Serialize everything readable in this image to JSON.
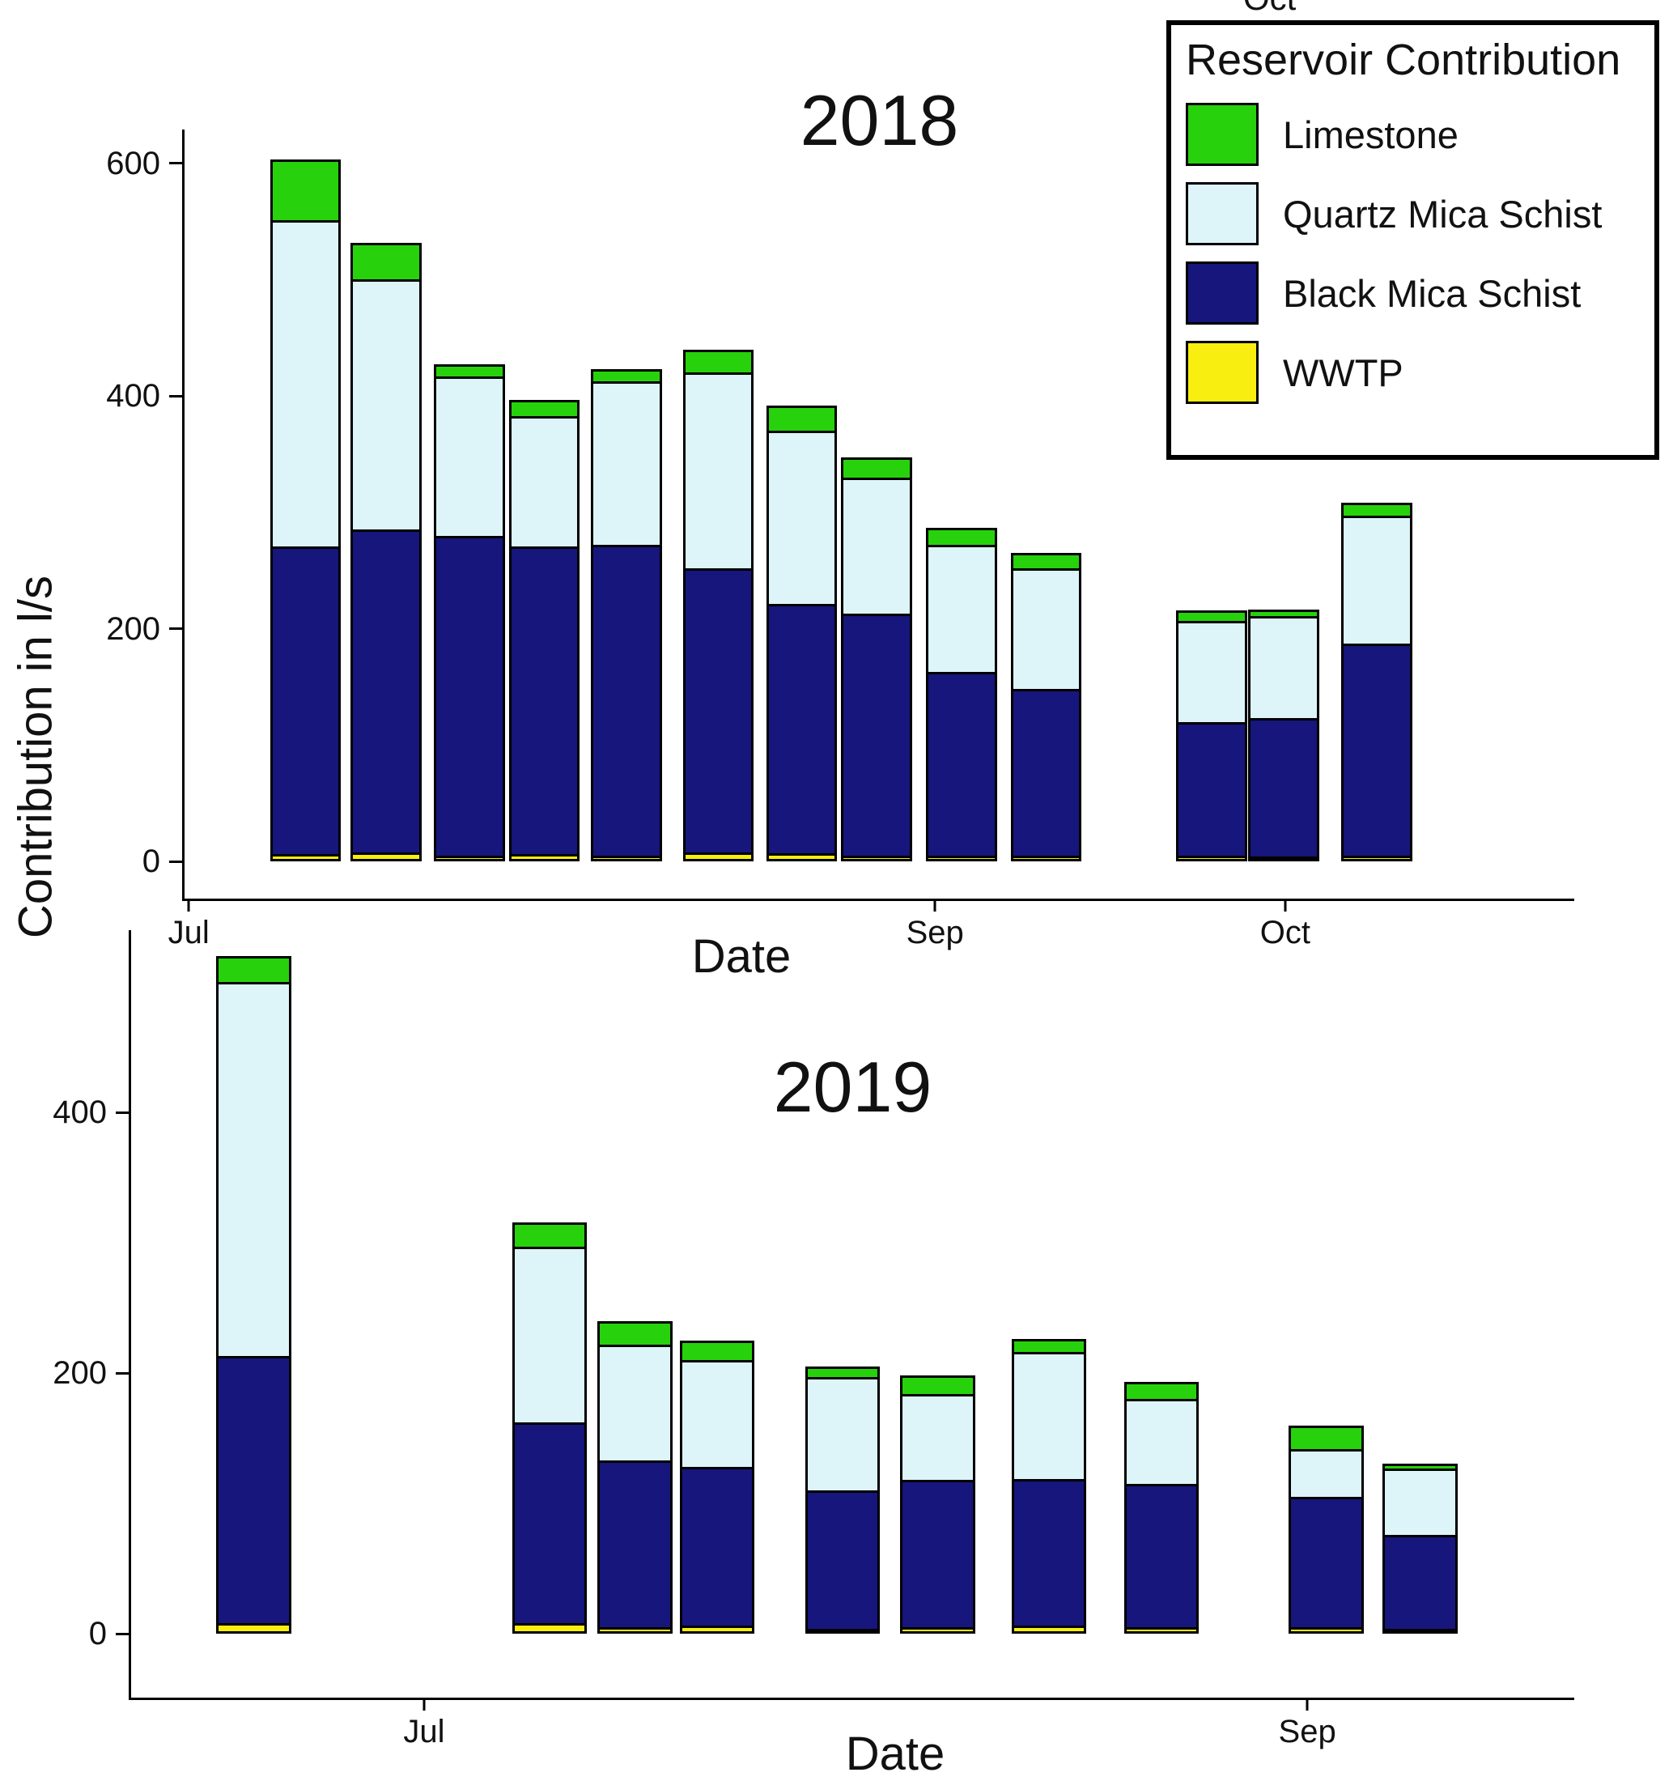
{
  "figure": {
    "ylabel": "Contribution in l/s",
    "cropped_top_label": "Oct"
  },
  "legend": {
    "title": "Reservoir Contribution",
    "items": [
      {
        "label": "Limestone",
        "color": "#27d20c"
      },
      {
        "label": "Quartz Mica Schist",
        "color": "#ddf4f9"
      },
      {
        "label": "Black Mica Schist",
        "color": "#16167c"
      },
      {
        "label": "WWTP",
        "color": "#f8ee0f"
      }
    ]
  },
  "chart_data": [
    {
      "type": "bar",
      "stacked": true,
      "title": "2018",
      "xlabel": "Date",
      "ylabel": "Contribution in l/s",
      "ylim": [
        0,
        620
      ],
      "yticks": [
        0,
        200,
        400,
        600
      ],
      "grid": false,
      "legend_position": "upper right (outside plot)",
      "xticks": [
        {
          "label": "Jul",
          "x": 0.003
        },
        {
          "label": "Sep",
          "x": 0.54
        },
        {
          "label": "Oct",
          "x": 0.792
        }
      ],
      "series": [
        {
          "name": "WWTP",
          "color": "#f8ee0f"
        },
        {
          "name": "Black Mica Schist",
          "color": "#16167c"
        },
        {
          "name": "Quartz Mica Schist",
          "color": "#ddf4f9"
        },
        {
          "name": "Limestone",
          "color": "#27d20c"
        }
      ],
      "bar_width": 0.051,
      "bars": [
        {
          "x": 0.087,
          "stack": [
            6,
            265,
            280,
            52
          ]
        },
        {
          "x": 0.145,
          "stack": [
            8,
            277,
            215,
            32
          ]
        },
        {
          "x": 0.205,
          "stack": [
            5,
            275,
            137,
            10
          ]
        },
        {
          "x": 0.259,
          "stack": [
            6,
            265,
            112,
            14
          ]
        },
        {
          "x": 0.318,
          "stack": [
            5,
            267,
            141,
            10
          ]
        },
        {
          "x": 0.384,
          "stack": [
            8,
            244,
            168,
            20
          ]
        },
        {
          "x": 0.444,
          "stack": [
            7,
            214,
            149,
            22
          ]
        },
        {
          "x": 0.498,
          "stack": [
            5,
            208,
            117,
            17
          ]
        },
        {
          "x": 0.559,
          "stack": [
            5,
            158,
            109,
            15
          ]
        },
        {
          "x": 0.62,
          "stack": [
            5,
            143,
            104,
            13
          ]
        },
        {
          "x": 0.739,
          "stack": [
            5,
            115,
            87,
            9
          ]
        },
        {
          "x": 0.791,
          "stack": [
            3,
            119,
            88,
            5
          ]
        },
        {
          "x": 0.858,
          "stack": [
            5,
            182,
            110,
            11
          ]
        }
      ]
    },
    {
      "type": "bar",
      "stacked": true,
      "title": "2019",
      "xlabel": "Date",
      "ylabel": "Contribution in l/s",
      "ylim": [
        0,
        540
      ],
      "yticks": [
        0,
        200,
        400
      ],
      "grid": false,
      "xticks": [
        {
          "label": "Jul",
          "x": 0.203
        },
        {
          "label": "Sep",
          "x": 0.815
        }
      ],
      "series": [
        {
          "name": "WWTP",
          "color": "#f8ee0f"
        },
        {
          "name": "Black Mica Schist",
          "color": "#16167c"
        },
        {
          "name": "Quartz Mica Schist",
          "color": "#ddf4f9"
        },
        {
          "name": "Limestone",
          "color": "#27d20c"
        }
      ],
      "bar_width": 0.052,
      "bars": [
        {
          "x": 0.085,
          "stack": [
            8,
            205,
            287,
            20
          ]
        },
        {
          "x": 0.29,
          "stack": [
            8,
            154,
            135,
            19
          ]
        },
        {
          "x": 0.349,
          "stack": [
            5,
            128,
            89,
            18
          ]
        },
        {
          "x": 0.406,
          "stack": [
            6,
            122,
            82,
            15
          ]
        },
        {
          "x": 0.493,
          "stack": [
            4,
            106,
            87,
            8
          ]
        },
        {
          "x": 0.559,
          "stack": [
            5,
            113,
            66,
            14
          ]
        },
        {
          "x": 0.636,
          "stack": [
            6,
            113,
            97,
            10
          ]
        },
        {
          "x": 0.714,
          "stack": [
            5,
            110,
            65,
            13
          ]
        },
        {
          "x": 0.828,
          "stack": [
            5,
            100,
            37,
            18
          ]
        },
        {
          "x": 0.893,
          "stack": [
            3,
            72,
            51,
            4
          ]
        }
      ]
    }
  ]
}
